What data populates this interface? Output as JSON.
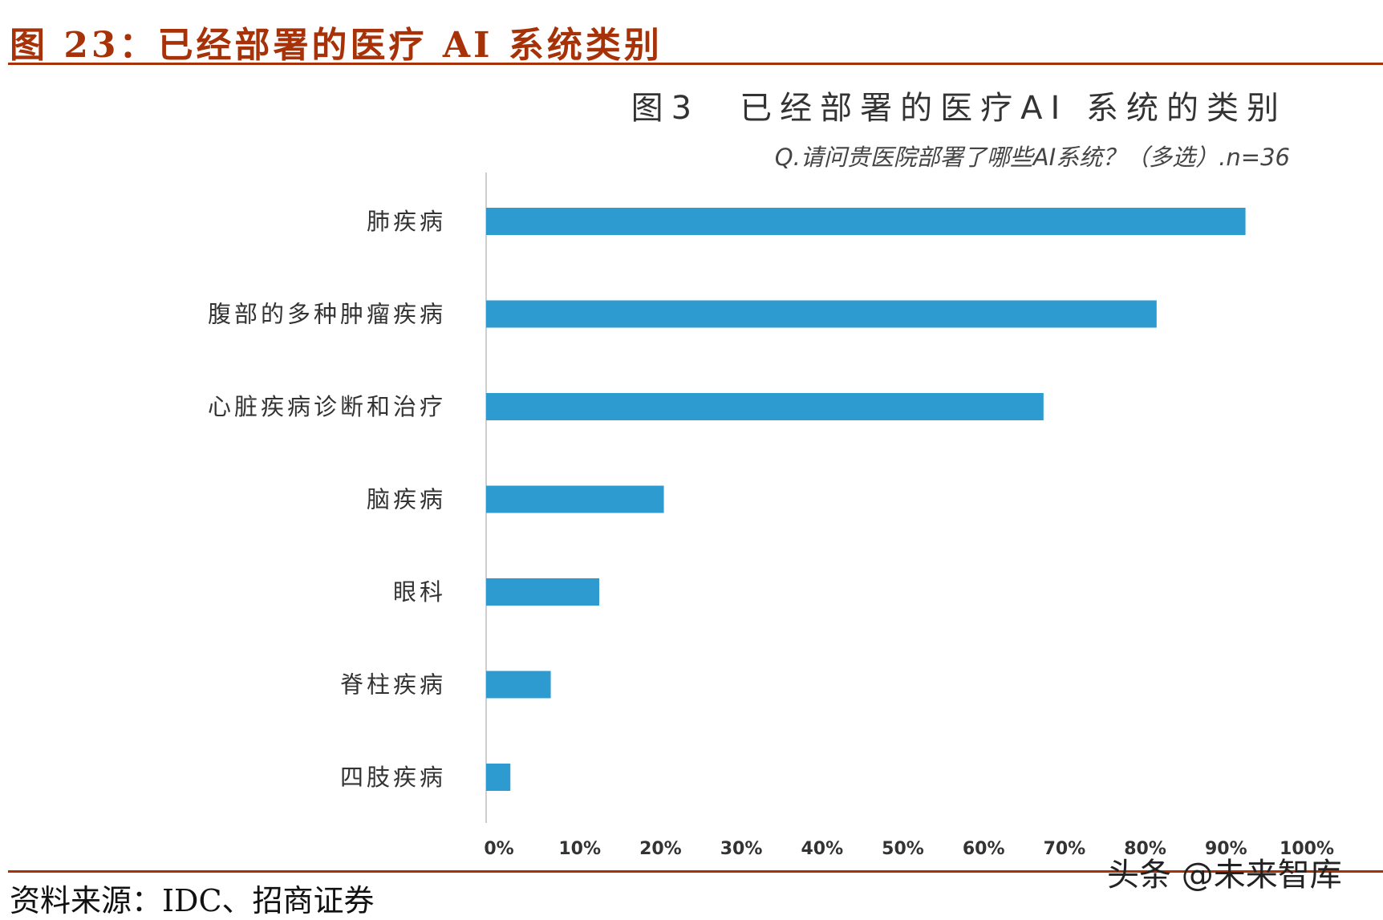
{
  "figure": {
    "header": "图 23：已经部署的医疗 AI 系统类别",
    "source": "资料来源：IDC、招商证券",
    "watermark": "头条 @未来智库",
    "accent_color": "#a83208"
  },
  "chart_data": {
    "type": "bar",
    "orientation": "horizontal",
    "title": "图3　已经部署的医疗AI 系统的类别",
    "subtitle": "Q.请问贵医院部署了哪些AI系统？（多选）.n=36",
    "categories": [
      "肺疾病",
      "腹部的多种肿瘤疾病",
      "心脏疾病诊断和治疗",
      "脑疾病",
      "眼科",
      "脊柱疾病",
      "四肢疾病"
    ],
    "values": [
      94,
      83,
      69,
      22,
      14,
      8,
      3
    ],
    "unit": "%",
    "xlim": [
      0,
      100
    ],
    "xticks": [
      "0%",
      "10%",
      "20%",
      "30%",
      "40%",
      "50%",
      "60%",
      "70%",
      "80%",
      "90%",
      "100%"
    ],
    "bar_color": "#2e9bd0",
    "grid": false,
    "legend": "none"
  }
}
